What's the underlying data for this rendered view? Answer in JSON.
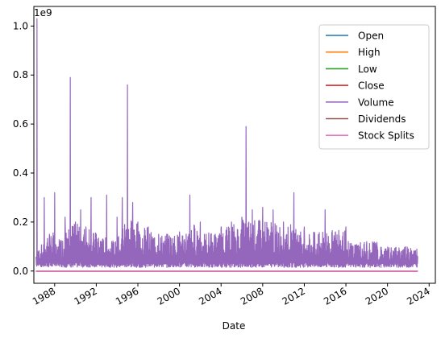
{
  "chart_data": {
    "type": "line",
    "xlabel": "Date",
    "ylabel": "",
    "y_offset_label": "1e9",
    "xlim": [
      1986.0,
      2024.6
    ],
    "ylim": [
      -0.05,
      1.08
    ],
    "x_ticks": [
      1988,
      1992,
      1996,
      2000,
      2004,
      2008,
      2012,
      2016,
      2020,
      2024
    ],
    "x_tick_labels": [
      "1988",
      "1992",
      "1996",
      "2000",
      "2004",
      "2008",
      "2012",
      "2016",
      "2020",
      "2024"
    ],
    "y_ticks": [
      0.0,
      0.2,
      0.4,
      0.6,
      0.8,
      1.0
    ],
    "y_tick_labels": [
      "0.0",
      "0.2",
      "0.4",
      "0.6",
      "0.8",
      "1.0"
    ],
    "grid": false,
    "legend_position": "top-right",
    "series": [
      {
        "name": "Open",
        "color": "#1f77b4",
        "values_approx": 0
      },
      {
        "name": "High",
        "color": "#ff7f0e",
        "values_approx": 0
      },
      {
        "name": "Low",
        "color": "#2ca02c",
        "values_approx": 0
      },
      {
        "name": "Close",
        "color": "#d62728",
        "values_approx": 0
      },
      {
        "name": "Volume",
        "color": "#9467bd",
        "unit_scale": 1000000000,
        "x": [
          1986.2,
          1986.3,
          1986.5,
          1987.0,
          1987.5,
          1988.0,
          1988.5,
          1989.0,
          1989.5,
          1990.0,
          1990.5,
          1991.0,
          1991.5,
          1992.0,
          1992.5,
          1993.0,
          1993.5,
          1994.0,
          1994.5,
          1995.0,
          1995.5,
          1996.0,
          1997.0,
          1998.0,
          1999.0,
          2000.0,
          2001.0,
          2002.0,
          2003.0,
          2004.0,
          2005.0,
          2006.0,
          2006.4,
          2007.0,
          2008.0,
          2009.0,
          2010.0,
          2011.0,
          2012.0,
          2013.0,
          2014.0,
          2015.0,
          2016.0,
          2017.0,
          2018.0,
          2019.0,
          2020.0,
          2021.0,
          2022.0,
          2022.9
        ],
        "y": [
          0.05,
          1.03,
          0.08,
          0.3,
          0.15,
          0.32,
          0.12,
          0.22,
          0.79,
          0.2,
          0.25,
          0.18,
          0.3,
          0.15,
          0.12,
          0.31,
          0.1,
          0.22,
          0.3,
          0.76,
          0.28,
          0.2,
          0.18,
          0.15,
          0.14,
          0.16,
          0.31,
          0.2,
          0.15,
          0.18,
          0.2,
          0.22,
          0.59,
          0.25,
          0.26,
          0.25,
          0.2,
          0.32,
          0.18,
          0.15,
          0.25,
          0.16,
          0.18,
          0.1,
          0.12,
          0.1,
          0.07,
          0.08,
          0.09,
          0.06
        ]
      },
      {
        "name": "Dividends",
        "color": "#8c564b",
        "values_approx": 0
      },
      {
        "name": "Stock Splits",
        "color": "#e377c2",
        "values_approx": 0
      }
    ]
  }
}
